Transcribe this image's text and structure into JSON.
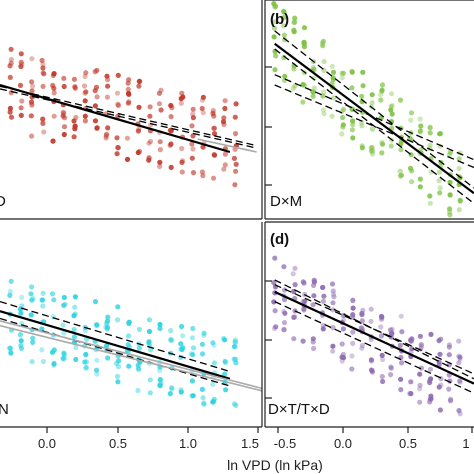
{
  "chart_data": [
    {
      "type": "scatter",
      "panel": "a",
      "tag": "",
      "corner_label": "D",
      "color": "#c0392b",
      "x_range": [
        -0.9,
        1.55
      ],
      "series": [
        {
          "values": [
            [
              -0.8,
              0.6
            ],
            [
              -0.7,
              0.59
            ],
            [
              -0.6,
              0.58
            ],
            [
              -0.5,
              0.57
            ],
            [
              -0.4,
              0.56
            ],
            [
              -0.3,
              0.55
            ],
            [
              -0.2,
              0.54
            ],
            [
              -0.1,
              0.53
            ],
            [
              0.0,
              0.52
            ],
            [
              0.1,
              0.51
            ],
            [
              0.2,
              0.5
            ],
            [
              0.3,
              0.49
            ],
            [
              0.4,
              0.48
            ],
            [
              0.5,
              0.47
            ],
            [
              0.6,
              0.46
            ],
            [
              0.7,
              0.45
            ],
            [
              0.8,
              0.44
            ],
            [
              0.9,
              0.43
            ],
            [
              1.0,
              0.42
            ],
            [
              1.1,
              0.41
            ],
            [
              1.2,
              0.4
            ],
            [
              1.3,
              0.39
            ]
          ]
        }
      ],
      "fit_lines": [
        {
          "x": [
            -0.9,
            1.25
          ],
          "y": [
            0.62,
            0.36
          ],
          "color": "#000000",
          "width": 2.2,
          "dash": ""
        },
        {
          "x": [
            -0.9,
            1.5
          ],
          "y": [
            0.615,
            0.385
          ],
          "color": "#000000",
          "width": 1.3,
          "dash": "7,4"
        },
        {
          "x": [
            -0.9,
            1.5
          ],
          "y": [
            0.605,
            0.375
          ],
          "color": "#000000",
          "width": 1.3,
          "dash": "7,4"
        },
        {
          "x": [
            0.95,
            1.5
          ],
          "y": [
            0.41,
            0.36
          ],
          "color": "#aaaaaa",
          "width": 1.6,
          "dash": ""
        }
      ]
    },
    {
      "type": "scatter",
      "panel": "b",
      "tag": "(b)",
      "corner_label": "D×M",
      "color": "#7dc242",
      "x_range": [
        -0.6,
        1.55
      ],
      "series": [
        {
          "values": [
            [
              -0.5,
              0.8
            ],
            [
              -0.4,
              0.77
            ],
            [
              -0.3,
              0.74
            ],
            [
              -0.2,
              0.71
            ],
            [
              -0.1,
              0.68
            ],
            [
              0.0,
              0.65
            ],
            [
              0.1,
              0.62
            ],
            [
              0.2,
              0.59
            ],
            [
              0.3,
              0.56
            ],
            [
              0.4,
              0.53
            ],
            [
              0.5,
              0.5
            ],
            [
              0.6,
              0.47
            ],
            [
              0.7,
              0.44
            ],
            [
              0.8,
              0.41
            ],
            [
              0.9,
              0.38
            ],
            [
              1.0,
              0.35
            ],
            [
              1.1,
              0.32
            ],
            [
              1.2,
              0.29
            ],
            [
              1.3,
              0.26
            ],
            [
              1.4,
              0.24
            ]
          ]
        }
      ],
      "fit_lines": [
        {
          "x": [
            -0.5,
            1.55
          ],
          "y": [
            0.78,
            0.2
          ],
          "color": "#000000",
          "width": 2.2,
          "dash": ""
        },
        {
          "x": [
            -0.5,
            1.55
          ],
          "y": [
            0.83,
            0.22
          ],
          "color": "#000000",
          "width": 1.3,
          "dash": "7,4"
        },
        {
          "x": [
            -0.5,
            1.55
          ],
          "y": [
            0.76,
            0.16
          ],
          "color": "#000000",
          "width": 1.3,
          "dash": "7,4"
        },
        {
          "x": [
            -0.5,
            1.55
          ],
          "y": [
            0.66,
            0.33
          ],
          "color": "#000000",
          "width": 1.3,
          "dash": "7,4"
        },
        {
          "x": [
            -0.5,
            1.55
          ],
          "y": [
            0.62,
            0.3
          ],
          "color": "#000000",
          "width": 1.3,
          "dash": "7,4"
        }
      ]
    },
    {
      "type": "scatter",
      "panel": "c",
      "tag": "",
      "corner_label": "N",
      "color": "#2bd3e0",
      "x_range": [
        -0.9,
        1.55
      ],
      "series": [
        {
          "values": [
            [
              -0.8,
              0.56
            ],
            [
              -0.7,
              0.54
            ],
            [
              -0.6,
              0.53
            ],
            [
              -0.5,
              0.52
            ],
            [
              -0.4,
              0.51
            ],
            [
              -0.3,
              0.5
            ],
            [
              -0.2,
              0.49
            ],
            [
              -0.1,
              0.47
            ],
            [
              0.0,
              0.46
            ],
            [
              0.1,
              0.45
            ],
            [
              0.2,
              0.44
            ],
            [
              0.3,
              0.43
            ],
            [
              0.4,
              0.41
            ],
            [
              0.5,
              0.4
            ],
            [
              0.6,
              0.39
            ],
            [
              0.7,
              0.38
            ],
            [
              0.8,
              0.36
            ],
            [
              0.9,
              0.35
            ],
            [
              1.0,
              0.34
            ],
            [
              1.1,
              0.33
            ],
            [
              1.2,
              0.32
            ],
            [
              1.3,
              0.31
            ]
          ]
        }
      ],
      "fit_lines": [
        {
          "x": [
            -0.9,
            1.25
          ],
          "y": [
            0.58,
            0.3
          ],
          "color": "#000000",
          "width": 2.2,
          "dash": ""
        },
        {
          "x": [
            -0.9,
            1.25
          ],
          "y": [
            0.62,
            0.33
          ],
          "color": "#000000",
          "width": 1.3,
          "dash": "7,4"
        },
        {
          "x": [
            -0.9,
            1.25
          ],
          "y": [
            0.55,
            0.27
          ],
          "color": "#000000",
          "width": 1.3,
          "dash": "7,4"
        },
        {
          "x": [
            -0.9,
            1.55
          ],
          "y": [
            0.54,
            0.26
          ],
          "color": "#aaaaaa",
          "width": 1.6,
          "dash": ""
        },
        {
          "x": [
            -0.9,
            1.55
          ],
          "y": [
            0.52,
            0.25
          ],
          "color": "#aaaaaa",
          "width": 1.6,
          "dash": ""
        }
      ]
    },
    {
      "type": "scatter",
      "panel": "d",
      "tag": "(d)",
      "corner_label": "D×T/T×D",
      "color": "#8e6bb0",
      "x_range": [
        -0.6,
        1.55
      ],
      "series": [
        {
          "values": [
            [
              -0.5,
              0.66
            ],
            [
              -0.4,
              0.64
            ],
            [
              -0.3,
              0.62
            ],
            [
              -0.2,
              0.6
            ],
            [
              -0.1,
              0.58
            ],
            [
              0.0,
              0.56
            ],
            [
              0.1,
              0.54
            ],
            [
              0.2,
              0.52
            ],
            [
              0.3,
              0.5
            ],
            [
              0.4,
              0.48
            ],
            [
              0.5,
              0.46
            ],
            [
              0.6,
              0.44
            ],
            [
              0.7,
              0.42
            ],
            [
              0.8,
              0.4
            ],
            [
              0.9,
              0.38
            ],
            [
              1.0,
              0.36
            ],
            [
              1.1,
              0.34
            ],
            [
              1.2,
              0.32
            ],
            [
              1.3,
              0.31
            ],
            [
              1.4,
              0.3
            ]
          ]
        }
      ],
      "fit_lines": [
        {
          "x": [
            -0.5,
            1.55
          ],
          "y": [
            0.66,
            0.28
          ],
          "color": "#000000",
          "width": 2.2,
          "dash": ""
        },
        {
          "x": [
            -0.5,
            1.55
          ],
          "y": [
            0.69,
            0.32
          ],
          "color": "#000000",
          "width": 1.3,
          "dash": "7,4"
        },
        {
          "x": [
            -0.5,
            1.55
          ],
          "y": [
            0.62,
            0.24
          ],
          "color": "#000000",
          "width": 1.3,
          "dash": "7,4"
        },
        {
          "x": [
            -0.5,
            1.55
          ],
          "y": [
            0.71,
            0.3
          ],
          "color": "#000000",
          "width": 1.3,
          "dash": "7,4"
        }
      ]
    }
  ],
  "x_ticks": {
    "left": [
      "0.0",
      "0.5",
      "1.0",
      "1.5"
    ],
    "right": [
      "-0.5",
      "0.0",
      "0.5",
      "1"
    ]
  },
  "x_axis_title": "ln VPD (ln kPa)"
}
